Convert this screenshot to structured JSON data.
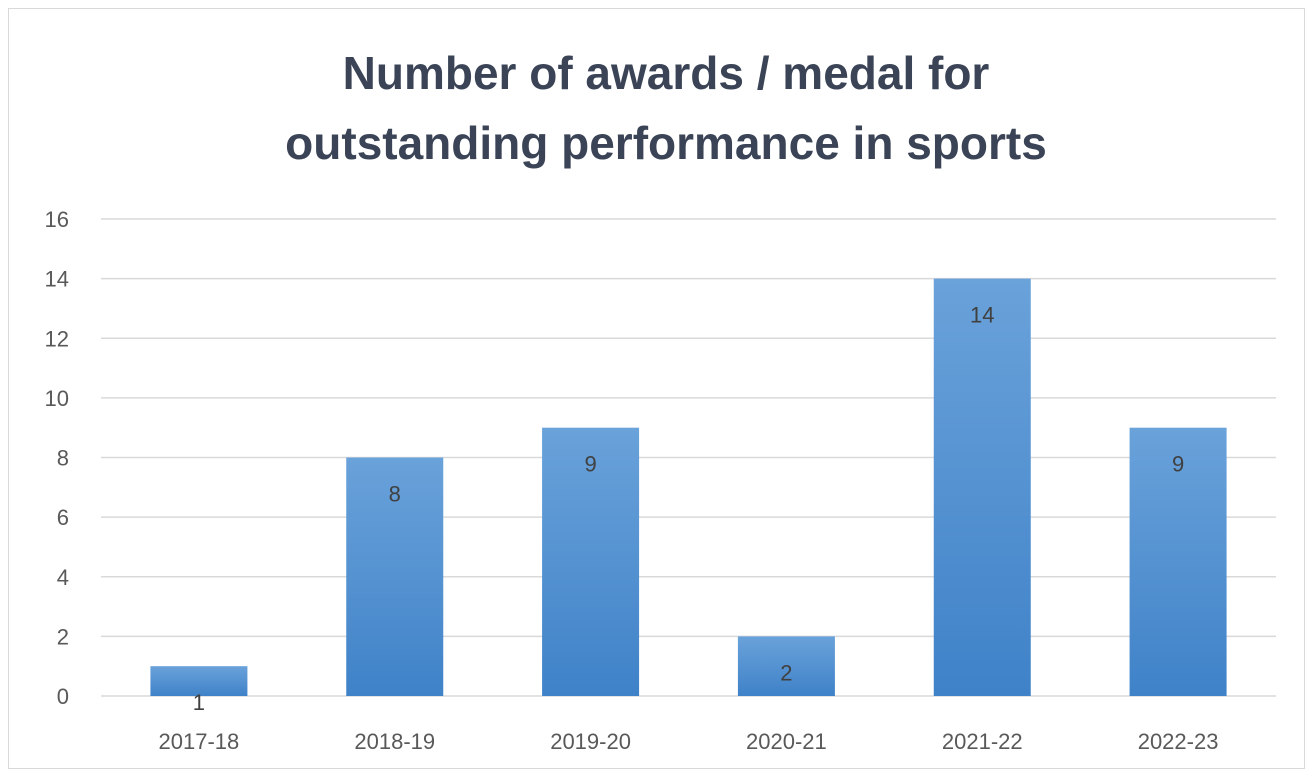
{
  "chart_data": {
    "type": "bar",
    "title": "Number of awards / medal for outstanding performance in sports",
    "title_lines": [
      "Number of awards / medal for",
      "outstanding performance in sports"
    ],
    "categories": [
      "2017-18",
      "2018-19",
      "2019-20",
      "2020-21",
      "2021-22",
      "2022-23"
    ],
    "values": [
      1,
      8,
      9,
      2,
      14,
      9
    ],
    "data_labels": [
      "1",
      "8",
      "9",
      "2",
      "14",
      "9"
    ],
    "xlabel": "",
    "ylabel": "",
    "ylim": [
      0,
      16
    ],
    "yticks": [
      0,
      2,
      4,
      6,
      8,
      10,
      12,
      14,
      16
    ],
    "ytick_labels": [
      "0",
      "2",
      "4",
      "6",
      "8",
      "10",
      "12",
      "14",
      "16"
    ],
    "grid": true,
    "legend": "none",
    "colors": {
      "bar_top": "#6aa2da",
      "bar_bottom": "#3f82c8",
      "title": "#3b4456",
      "tick": "#595959",
      "label": "#404040",
      "grid": "#d9d9d9"
    }
  }
}
